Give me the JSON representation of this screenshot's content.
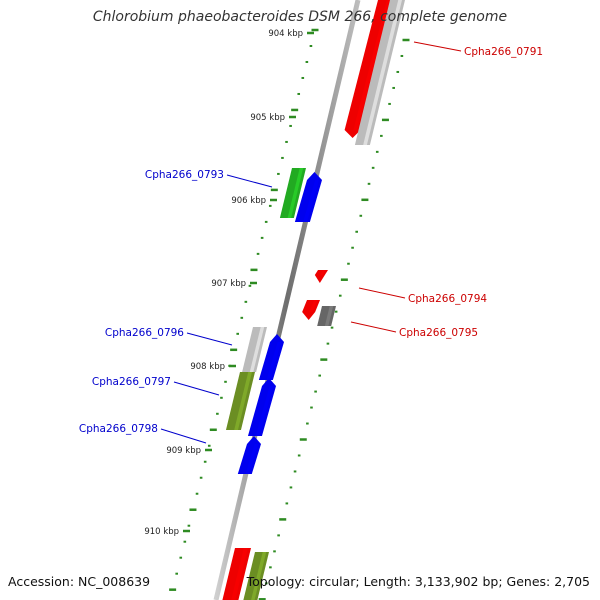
{
  "title": "Chlorobium phaeobacteroides DSM 266, complete genome",
  "footer": {
    "accession": "Accession: NC_008639",
    "summary": "Topology: circular; Length: 3,133,902 bp; Genes: 2,705"
  },
  "colors": {
    "backbone": "#7a7a7a",
    "tick": "#2e8b22",
    "forward_label": "#0000cc",
    "reverse_label": "#cc0000",
    "red_gene": "#ee0000",
    "gray_gene": "#bbbbbb",
    "dark_gray_gene": "#666666",
    "blue_gene": "#0000ee",
    "green_gene": "#22aa22",
    "olive_gene": "#6b8e23"
  },
  "kbp_labels": [
    "904 kbp",
    "905 kbp",
    "906 kbp",
    "907 kbp",
    "908 kbp",
    "909 kbp",
    "910 kbp"
  ],
  "gene_labels": [
    {
      "id": "Cpha266_0791",
      "strand": "reverse"
    },
    {
      "id": "Cpha266_0793",
      "strand": "forward"
    },
    {
      "id": "Cpha266_0794",
      "strand": "reverse"
    },
    {
      "id": "Cpha266_0795",
      "strand": "reverse"
    },
    {
      "id": "Cpha266_0796",
      "strand": "forward"
    },
    {
      "id": "Cpha266_0797",
      "strand": "forward"
    },
    {
      "id": "Cpha266_0798",
      "strand": "forward"
    }
  ]
}
